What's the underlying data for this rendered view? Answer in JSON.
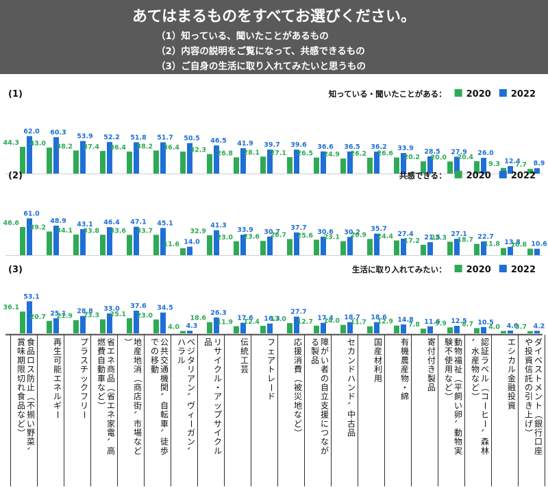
{
  "header": {
    "title": "あてはまるものをすべてお選びください。",
    "questions": [
      "（1）知っている、聞いたことがあるもの",
      "（2）内容の説明をご覧になって、共感できるもの",
      "（3）ご自身の生活に取り入れてみたいと思うもの"
    ]
  },
  "colors": {
    "y2020": "#2eaa56",
    "y2022": "#1f6fd6",
    "header_bg": "#5a5a5a",
    "divider": "#2a2a2a"
  },
  "chart_data": {
    "type": "bar",
    "categories": [
      "食品ロス防止（不揃い野菜、賞味期限切れ食品など）",
      "再生可能エネルギー",
      "プラスチックフリー",
      "省エネ商品（省エネ家電、高燃費自動車など）",
      "地産地消（商店街、市場など）",
      "公共交通機関、自転車、徒歩での移動",
      "ベジタリアン、ヴィーガン、ハラル",
      "リサイクル・アップサイクル品",
      "伝統工芸",
      "フェアトレード",
      "応援消費（被災地など）",
      "障がい者の自立支援につながる製品",
      "セカンドハンド、中古品",
      "国産材利用",
      "有機農産物・綿",
      "寄付付き製品",
      "動物福祉（平飼い卵、動物実験不使用など）",
      "認証ラベル（コーヒー、森林、水産物など）",
      "エシカル金融投資",
      "ダイベストメント（銀行口座や投資信託の引き上げ）"
    ],
    "panels": [
      {
        "label": "(1)",
        "legend_title": "知っている・聞いたことがある：",
        "series": [
          {
            "name": "2020",
            "values": [
              44.3,
              43.0,
              38.2,
              37.4,
              36.4,
              38.2,
              36.4,
              32.3,
              26.8,
              28.1,
              27.1,
              26.5,
              24.9,
              26.2,
              26.6,
              20.2,
              20.0,
              20.4,
              9.3,
              7.7
            ]
          },
          {
            "name": "2022",
            "values": [
              62.0,
              60.3,
              53.9,
              52.2,
              51.8,
              51.7,
              50.5,
              46.5,
              41.9,
              39.7,
              39.6,
              36.6,
              36.5,
              36.2,
              33.9,
              28.5,
              27.9,
              26.0,
              12.4,
              8.9
            ]
          }
        ]
      },
      {
        "label": "(2)",
        "legend_title": "共感できる：",
        "series": [
          {
            "name": "2020",
            "values": [
              46.6,
              39.2,
              34.1,
              33.8,
              33.6,
              33.7,
              11.6,
              32.9,
              23.0,
              23.6,
              26.7,
              25.6,
              23.1,
              26.9,
              24.4,
              17.2,
              22.3,
              18.7,
              11.8,
              10.8
            ]
          },
          {
            "name": "2022",
            "values": [
              61.0,
              48.9,
              43.1,
              46.4,
              47.1,
              45.1,
              14.0,
              41.3,
              33.9,
              30.7,
              37.7,
              30.6,
              30.2,
              35.7,
              27.4,
              21.5,
              27.1,
              22.7,
              13.8,
              10.6
            ]
          }
        ]
      },
      {
        "label": "(3)",
        "legend_title": "生活に取り入れてみたい：",
        "series": [
          {
            "name": "2020",
            "values": [
              36.1,
              20.7,
              21.9,
              23.3,
              25.1,
              23.0,
              4.0,
              18.6,
              11.9,
              12.4,
              17.0,
              12.7,
              14.0,
              11.7,
              12.9,
              7.8,
              9.9,
              8.7,
              4.0,
              3.7
            ]
          },
          {
            "name": "2022",
            "values": [
              53.1,
              25.1,
              28.8,
              33.0,
              37.6,
              34.5,
              4.3,
              26.3,
              17.6,
              16.3,
              27.7,
              17.4,
              18.7,
              18.6,
              14.8,
              11.6,
              12.5,
              10.5,
              4.6,
              4.2
            ]
          }
        ]
      }
    ]
  }
}
